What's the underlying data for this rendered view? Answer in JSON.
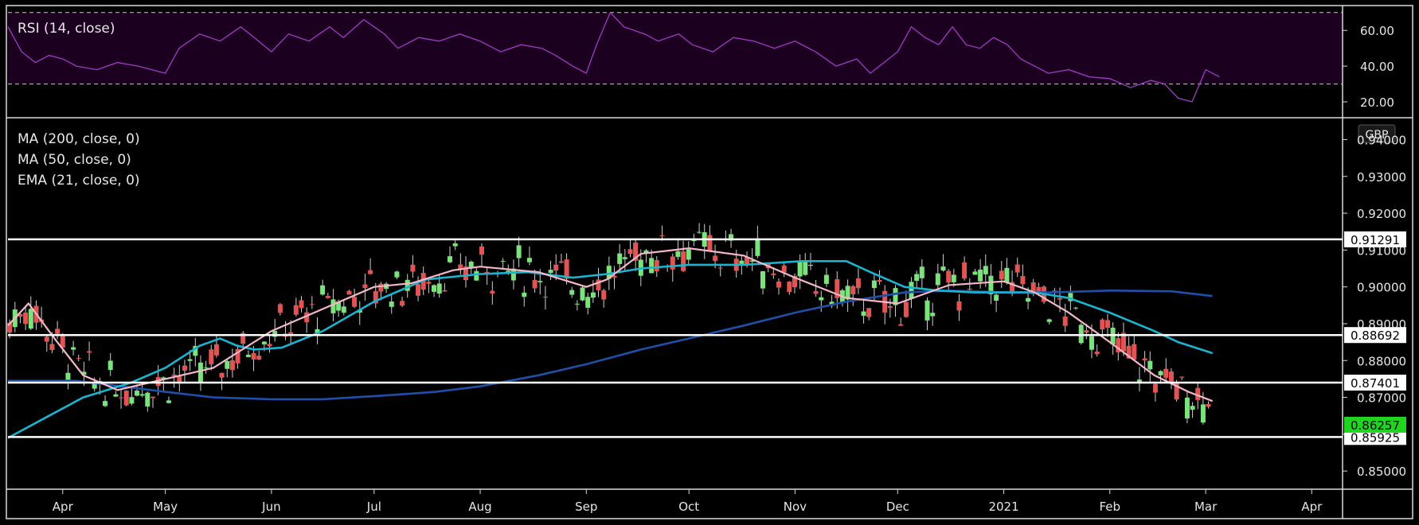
{
  "colors": {
    "background": "#000000",
    "rsi_band": "#1c0020",
    "rsi_line": "#a23ac6",
    "ma200": "#1f4fa8",
    "ma50": "#1ab4cf",
    "ema21": "#f4b8c8",
    "candle_up": "#7be37b",
    "candle_down": "#e25454",
    "level_line": "#ffffff",
    "last_price_bg": "#22d422"
  },
  "rsi_panel": {
    "legend": "RSI (14, close)",
    "ticks": [
      "60.00",
      "40.00",
      "20.00"
    ],
    "tick_values": [
      60,
      40,
      20
    ],
    "ylim": [
      12,
      73
    ],
    "upper_band": 70,
    "lower_band": 30
  },
  "price_panel": {
    "legends": [
      "MA (200, close, 0)",
      "MA (50, close, 0)",
      "EMA (21, close, 0)"
    ],
    "currency": "GBP",
    "ticks": [
      "0.94000",
      "0.93000",
      "0.92000",
      "0.91000",
      "0.90000",
      "0.89000",
      "0.88000",
      "0.87000",
      "0.86000",
      "0.85000"
    ],
    "tick_values": [
      0.94,
      0.93,
      0.92,
      0.91,
      0.9,
      0.89,
      0.88,
      0.87,
      0.86,
      0.85
    ],
    "ylim": [
      0.8455,
      0.9455
    ],
    "levels": [
      {
        "value": 0.91291,
        "label": "0.91291"
      },
      {
        "value": 0.88692,
        "label": "0.88692"
      },
      {
        "value": 0.87401,
        "label": "0.87401"
      },
      {
        "value": 0.85925,
        "label": "0.85925"
      }
    ],
    "last_price": {
      "value": 0.86257,
      "label": "0.86257"
    }
  },
  "x_axis": {
    "labels": [
      "Apr",
      "May",
      "Jun",
      "Jul",
      "Aug",
      "Sep",
      "Oct",
      "Nov",
      "Dec",
      "2021",
      "Feb",
      "Mar",
      "Apr"
    ],
    "label_days": [
      16,
      46,
      77,
      107,
      138,
      169,
      199,
      230,
      260,
      291,
      322,
      350,
      381
    ]
  },
  "chart_data": {
    "type": "line",
    "x_domain_days": [
      0,
      390
    ],
    "series": [
      {
        "x": [
          0,
          6,
          14,
          22,
          32,
          46,
          60,
          77,
          92,
          107,
          118,
          130,
          138,
          155,
          169,
          175,
          185,
          199,
          215,
          230,
          245,
          260,
          275,
          291,
          300,
          310,
          322,
          335,
          345,
          352
        ],
        "y": [
          0.8895,
          0.8955,
          0.8855,
          0.876,
          0.872,
          0.875,
          0.878,
          0.888,
          0.894,
          0.9,
          0.901,
          0.9045,
          0.9055,
          0.904,
          0.9,
          0.902,
          0.909,
          0.9105,
          0.9085,
          0.9025,
          0.897,
          0.8955,
          0.9005,
          0.9015,
          0.8985,
          0.893,
          0.885,
          0.876,
          0.8715,
          0.869
        ]
      },
      {
        "x": [
          0,
          10,
          22,
          36,
          46,
          56,
          62,
          67,
          72,
          80,
          92,
          107,
          122,
          138,
          152,
          165,
          175,
          185,
          199,
          215,
          232,
          245,
          252,
          262,
          272,
          282,
          291,
          300,
          310,
          322,
          335,
          342,
          352
        ],
        "y": [
          0.859,
          0.864,
          0.87,
          0.874,
          0.878,
          0.884,
          0.886,
          0.884,
          0.883,
          0.8835,
          0.888,
          0.896,
          0.902,
          0.9035,
          0.904,
          0.9025,
          0.9035,
          0.905,
          0.906,
          0.906,
          0.907,
          0.907,
          0.904,
          0.9,
          0.899,
          0.8985,
          0.8985,
          0.8985,
          0.897,
          0.893,
          0.888,
          0.885,
          0.882
        ]
      },
      {
        "x": [
          0,
          20,
          46,
          60,
          77,
          92,
          110,
          125,
          138,
          155,
          169,
          185,
          199,
          215,
          230,
          245,
          262,
          275,
          291,
          305,
          322,
          340,
          352
        ],
        "y": [
          0.8745,
          0.8745,
          0.8715,
          0.87,
          0.8695,
          0.8695,
          0.8705,
          0.8715,
          0.873,
          0.876,
          0.879,
          0.883,
          0.886,
          0.8895,
          0.893,
          0.896,
          0.8985,
          0.899,
          0.8985,
          0.8985,
          0.899,
          0.8988,
          0.8975
        ]
      },
      {
        "x": [
          0,
          4,
          8,
          12,
          16,
          20,
          26,
          32,
          38,
          46,
          50,
          56,
          62,
          68,
          72,
          77,
          82,
          88,
          94,
          98,
          104,
          110,
          114,
          120,
          126,
          132,
          138,
          144,
          150,
          156,
          160,
          165,
          169,
          172,
          176,
          180,
          186,
          190,
          196,
          200,
          206,
          212,
          218,
          224,
          230,
          236,
          242,
          248,
          252,
          256,
          260,
          264,
          268,
          272,
          276,
          280,
          284,
          288,
          292,
          296,
          300,
          304,
          310,
          316,
          322,
          328,
          334,
          338,
          342,
          346,
          350,
          354
        ],
        "y": [
          62,
          48,
          42,
          46,
          44,
          40,
          38,
          42,
          40,
          36,
          50,
          58,
          54,
          62,
          56,
          48,
          58,
          54,
          62,
          56,
          66,
          58,
          50,
          56,
          54,
          58,
          54,
          48,
          52,
          50,
          46,
          40,
          36,
          52,
          70,
          62,
          58,
          54,
          58,
          52,
          48,
          56,
          54,
          50,
          54,
          48,
          40,
          44,
          36,
          42,
          48,
          62,
          56,
          52,
          62,
          52,
          50,
          56,
          52,
          44,
          40,
          36,
          38,
          34,
          33,
          28,
          32,
          30,
          22,
          20,
          38,
          34
        ]
      }
    ]
  }
}
